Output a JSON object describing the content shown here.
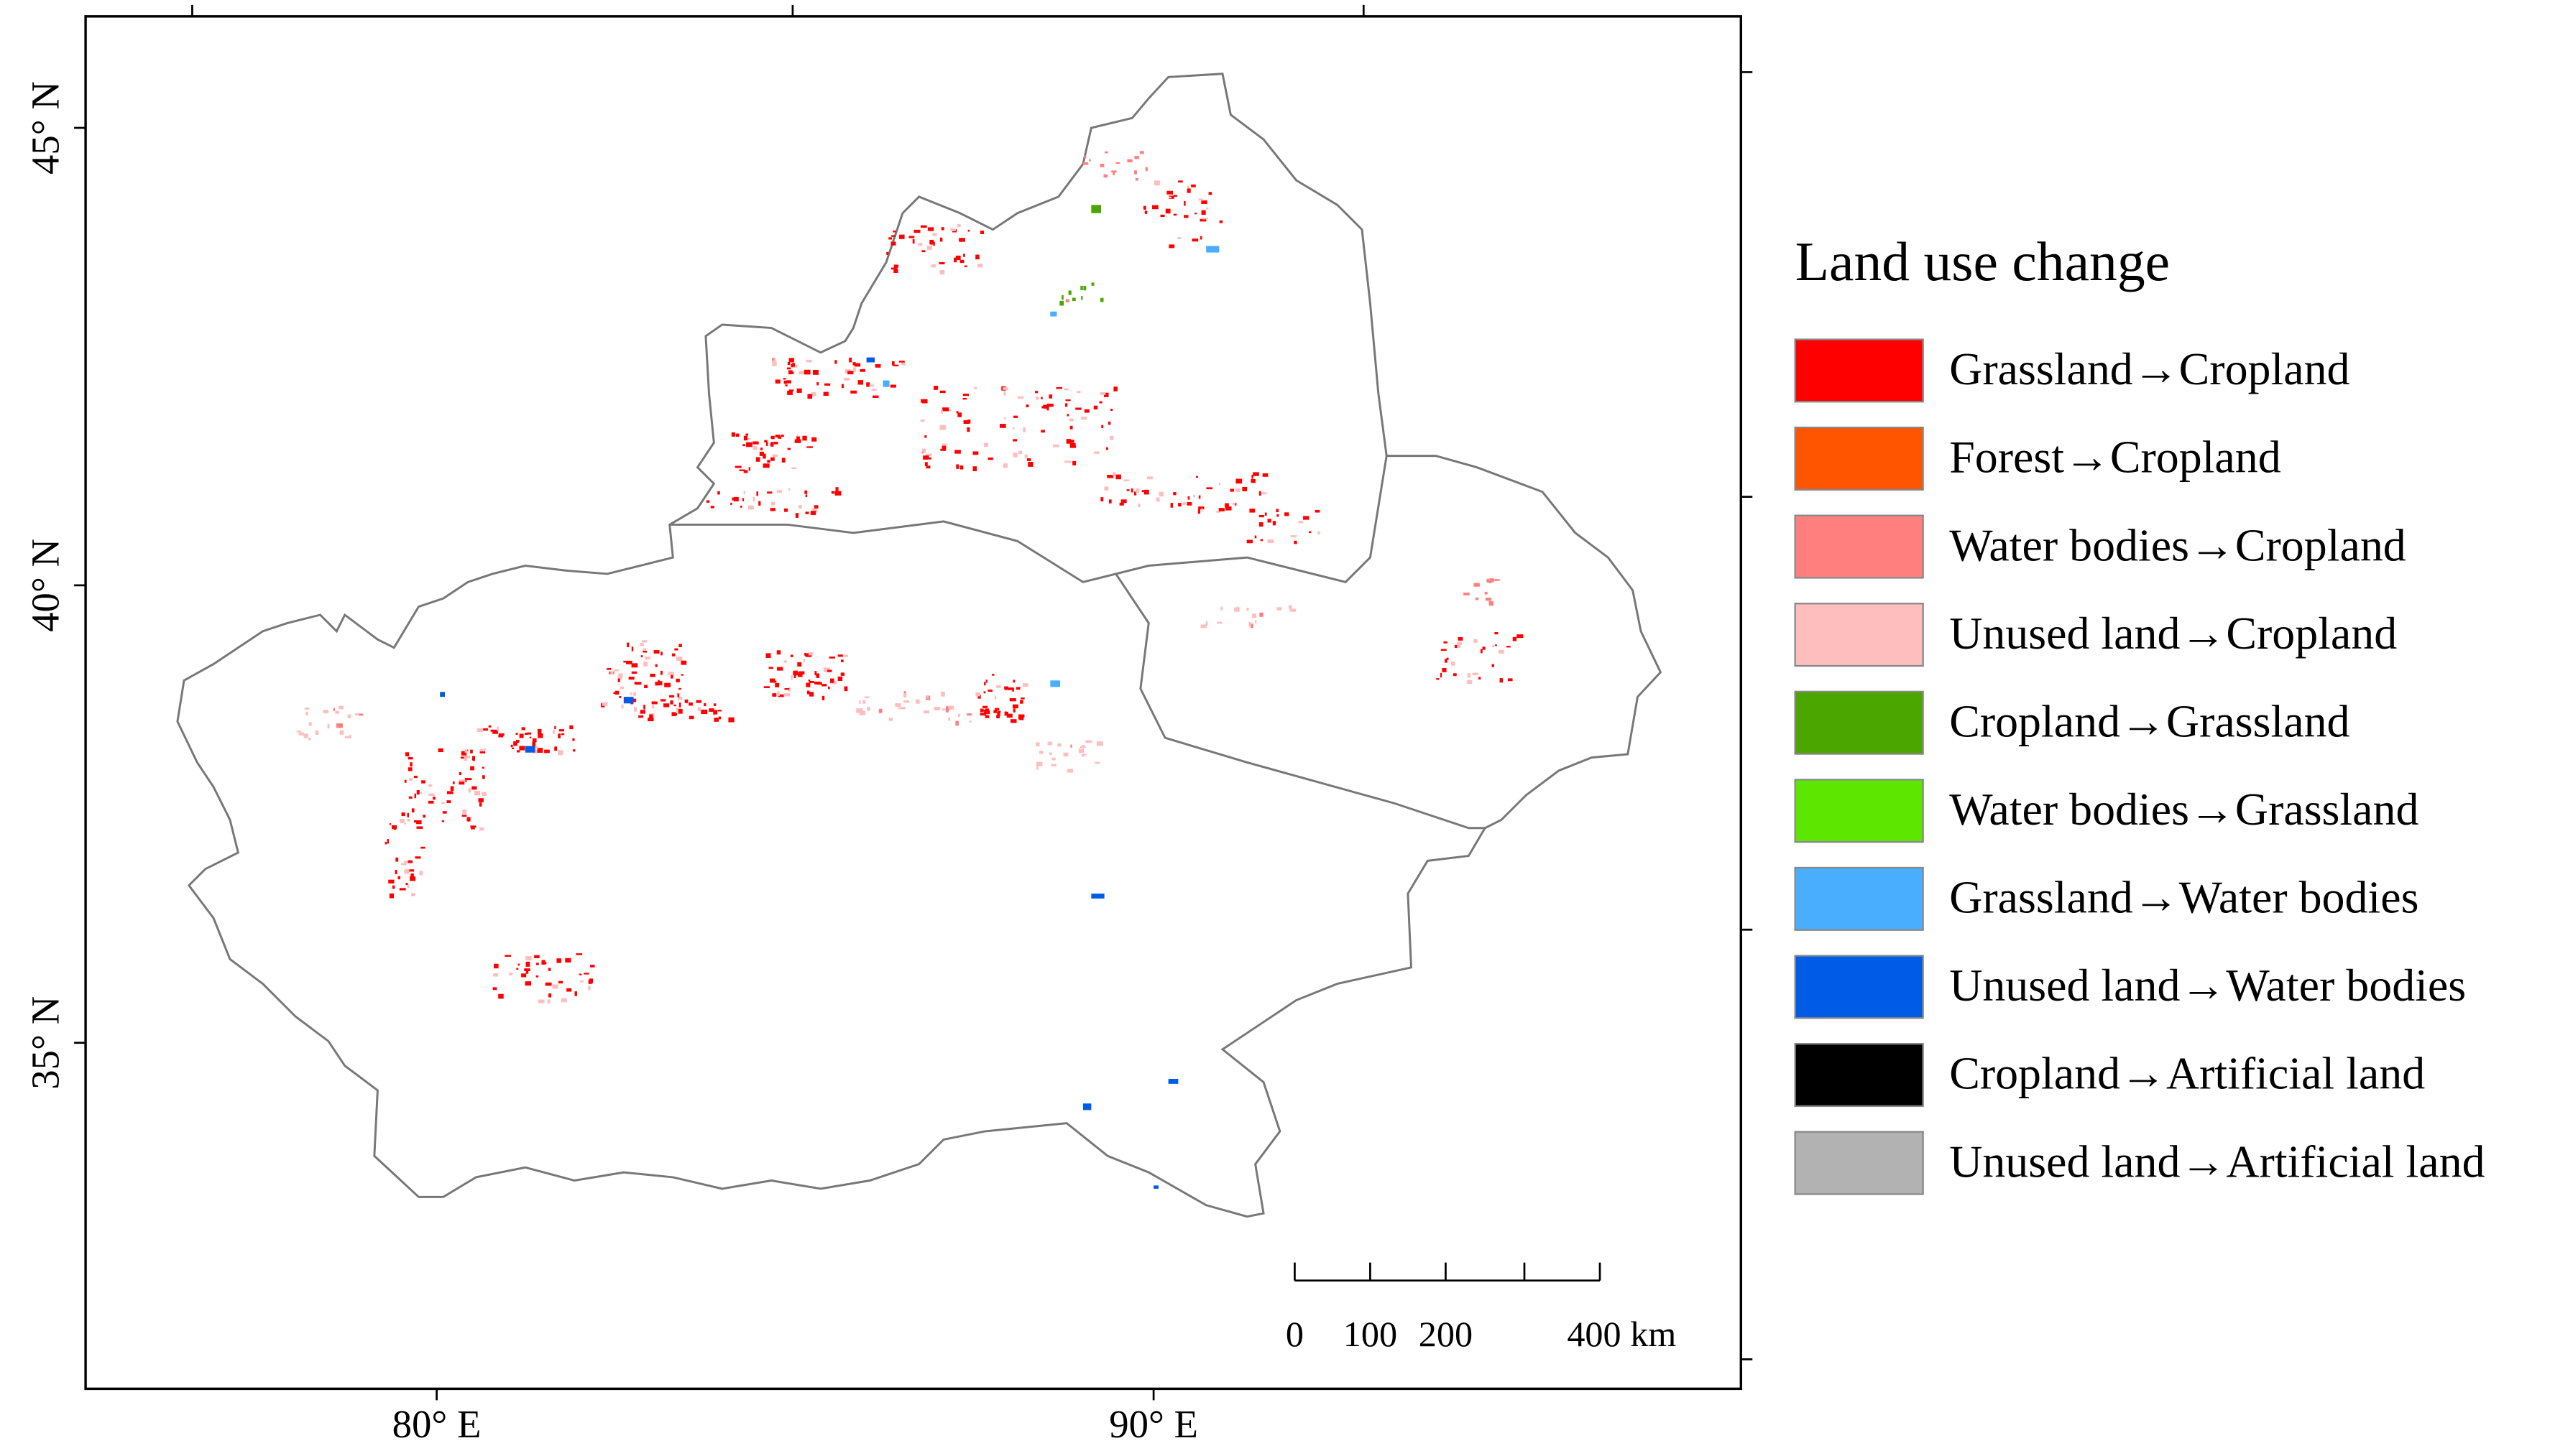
{
  "map": {
    "lat_labels": [
      "45° N",
      "40° N",
      "35° N"
    ],
    "lon_labels": [
      "80° E",
      "90° E"
    ],
    "scale_bar": {
      "labels": [
        "0",
        "100",
        "200",
        "400 km"
      ]
    }
  },
  "legend": {
    "title": "Land use change",
    "items": [
      {
        "label": "Grassland→Cropland",
        "color": "#ff0000"
      },
      {
        "label": "Forest→Cropland",
        "color": "#ff5500"
      },
      {
        "label": "Water bodies→Cropland",
        "color": "#ff7f7f"
      },
      {
        "label": "Unused land→Cropland",
        "color": "#ffbebe"
      },
      {
        "label": "Cropland→Grassland",
        "color": "#4ca600"
      },
      {
        "label": "Water bodies→Grassland",
        "color": "#5ce600"
      },
      {
        "label": "Grassland→Water bodies",
        "color": "#4aaeff"
      },
      {
        "label": "Unused land→Water bodies",
        "color": "#005ce6"
      },
      {
        "label": "Cropland→Artificial land",
        "color": "#000000"
      },
      {
        "label": "Unused land→Artificial land",
        "color": "#b2b2b2"
      }
    ]
  }
}
